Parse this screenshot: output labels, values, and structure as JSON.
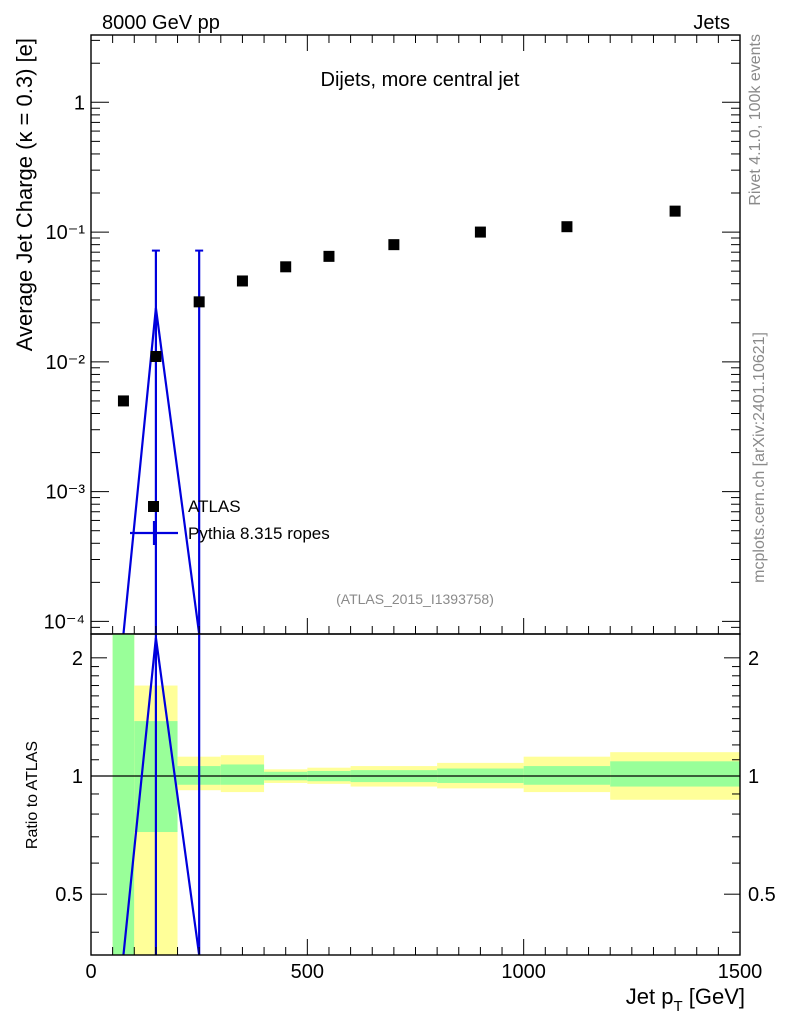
{
  "header": {
    "left": "8000 GeV pp",
    "right": "Jets"
  },
  "side_labels": {
    "rivet": "Rivet 4.1.0,  100k events",
    "mcplots": "mcplots.cern.ch [arXiv:2401.10621]"
  },
  "colors": {
    "data": "#000000",
    "mc": "#0000dd",
    "band_inner": "#99ff99",
    "band_outer": "#ffff99"
  },
  "chart_data": [
    {
      "type": "scatter",
      "title": "Dijets, more central jet",
      "ylabel": "Average Jet Charge (κ = 0.3) [e]",
      "yscale": "log",
      "xlim": [
        0,
        1500
      ],
      "ylim": [
        8e-05,
        3.3
      ],
      "y_tick_labels": [
        "10⁻⁴",
        "10⁻³",
        "10⁻²",
        "10⁻¹",
        "1"
      ],
      "watermark": "(ATLAS_2015_I1393758)",
      "legend": {
        "placement": "lower-left",
        "entries": [
          "ATLAS",
          "Pythia 8.315 ropes"
        ]
      },
      "series": [
        {
          "name": "ATLAS",
          "marker": "square",
          "x": [
            75,
            150,
            250,
            350,
            450,
            550,
            700,
            900,
            1100,
            1350
          ],
          "y": [
            0.005,
            0.011,
            0.029,
            0.042,
            0.054,
            0.065,
            0.08,
            0.1,
            0.11,
            0.145
          ]
        },
        {
          "name": "Pythia 8.315 ropes",
          "line": true,
          "x": [
            75,
            150,
            250
          ],
          "y": [
            8e-05,
            0.026,
            8e-05
          ],
          "errorbars": [
            {
              "x": 150,
              "low": 8e-05,
              "high": 0.072
            },
            {
              "x": 250,
              "low": 8e-05,
              "high": 0.072
            }
          ]
        }
      ]
    },
    {
      "type": "area",
      "ylabel": "Ratio to ATLAS",
      "xlabel": "Jet p_T [GeV]",
      "xlim": [
        0,
        1500
      ],
      "ylim": [
        0.35,
        2.3
      ],
      "x_tick_labels": [
        "0",
        "500",
        "1000",
        "1500"
      ],
      "y_tick_labels": [
        "0.5",
        "1",
        "2"
      ],
      "reference_line": 1,
      "bins": [
        {
          "lo": 50,
          "hi": 100,
          "inner": [
            0.35,
            2.3
          ],
          "outer": [
            0.35,
            2.3
          ]
        },
        {
          "lo": 100,
          "hi": 200,
          "inner": [
            0.72,
            1.38
          ],
          "outer": [
            0.35,
            1.7
          ]
        },
        {
          "lo": 200,
          "hi": 300,
          "inner": [
            0.95,
            1.06
          ],
          "outer": [
            0.92,
            1.12
          ]
        },
        {
          "lo": 300,
          "hi": 400,
          "inner": [
            0.95,
            1.07
          ],
          "outer": [
            0.91,
            1.13
          ]
        },
        {
          "lo": 400,
          "hi": 500,
          "inner": [
            0.975,
            1.025
          ],
          "outer": [
            0.96,
            1.04
          ]
        },
        {
          "lo": 500,
          "hi": 600,
          "inner": [
            0.97,
            1.03
          ],
          "outer": [
            0.955,
            1.05
          ]
        },
        {
          "lo": 600,
          "hi": 800,
          "inner": [
            0.965,
            1.035
          ],
          "outer": [
            0.94,
            1.06
          ]
        },
        {
          "lo": 800,
          "hi": 1000,
          "inner": [
            0.96,
            1.045
          ],
          "outer": [
            0.93,
            1.08
          ]
        },
        {
          "lo": 1000,
          "hi": 1200,
          "inner": [
            0.95,
            1.06
          ],
          "outer": [
            0.91,
            1.12
          ]
        },
        {
          "lo": 1200,
          "hi": 1500,
          "inner": [
            0.94,
            1.09
          ],
          "outer": [
            0.87,
            1.15
          ]
        }
      ],
      "mc_ratio": {
        "x": [
          75,
          150,
          250
        ],
        "y": [
          0.35,
          2.25,
          0.35
        ],
        "errorbars": [
          {
            "x": 150
          },
          {
            "x": 250
          }
        ]
      }
    }
  ]
}
